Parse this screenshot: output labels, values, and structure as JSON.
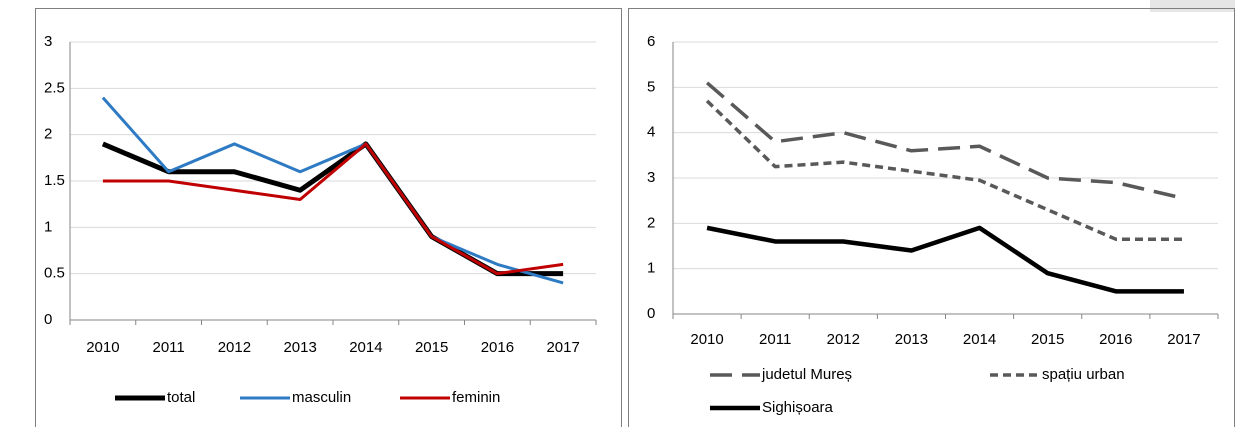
{
  "chart_data": [
    {
      "type": "line",
      "categories": [
        "2010",
        "2011",
        "2012",
        "2013",
        "2014",
        "2015",
        "2016",
        "2017"
      ],
      "ylim": [
        0,
        3
      ],
      "yticks": [
        0,
        0.5,
        1,
        1.5,
        2,
        2.5,
        3
      ],
      "grid": true,
      "legend": "bottom",
      "series": [
        {
          "name": "total",
          "color": "#000000",
          "dash": "solid",
          "values": [
            1.9,
            1.6,
            1.6,
            1.4,
            1.9,
            0.9,
            0.5,
            0.5
          ]
        },
        {
          "name": "masculin",
          "color": "#2e7bc4",
          "dash": "solid",
          "values": [
            2.4,
            1.6,
            1.9,
            1.6,
            1.9,
            0.9,
            0.6,
            0.4
          ]
        },
        {
          "name": "feminin",
          "color": "#c00000",
          "dash": "solid",
          "values": [
            1.5,
            1.5,
            1.4,
            1.3,
            1.9,
            0.9,
            0.5,
            0.6
          ]
        }
      ]
    },
    {
      "type": "line",
      "categories": [
        "2010",
        "2011",
        "2012",
        "2013",
        "2014",
        "2015",
        "2016",
        "2017"
      ],
      "ylim": [
        0,
        6
      ],
      "yticks": [
        0,
        1,
        2,
        3,
        4,
        5,
        6
      ],
      "grid": true,
      "legend": "bottom",
      "series": [
        {
          "name": "judetul Mureș",
          "color": "#595959",
          "dash": "long",
          "values": [
            5.1,
            3.8,
            4.0,
            3.6,
            3.7,
            3.0,
            2.9,
            2.55
          ]
        },
        {
          "name": "spațiu urban",
          "color": "#595959",
          "dash": "short",
          "values": [
            4.7,
            3.25,
            3.35,
            3.15,
            2.95,
            2.3,
            1.65,
            1.65
          ]
        },
        {
          "name": "Sighișoara",
          "color": "#000000",
          "dash": "solid",
          "values": [
            1.9,
            1.6,
            1.6,
            1.4,
            1.9,
            0.9,
            0.5,
            0.5
          ]
        }
      ]
    }
  ]
}
